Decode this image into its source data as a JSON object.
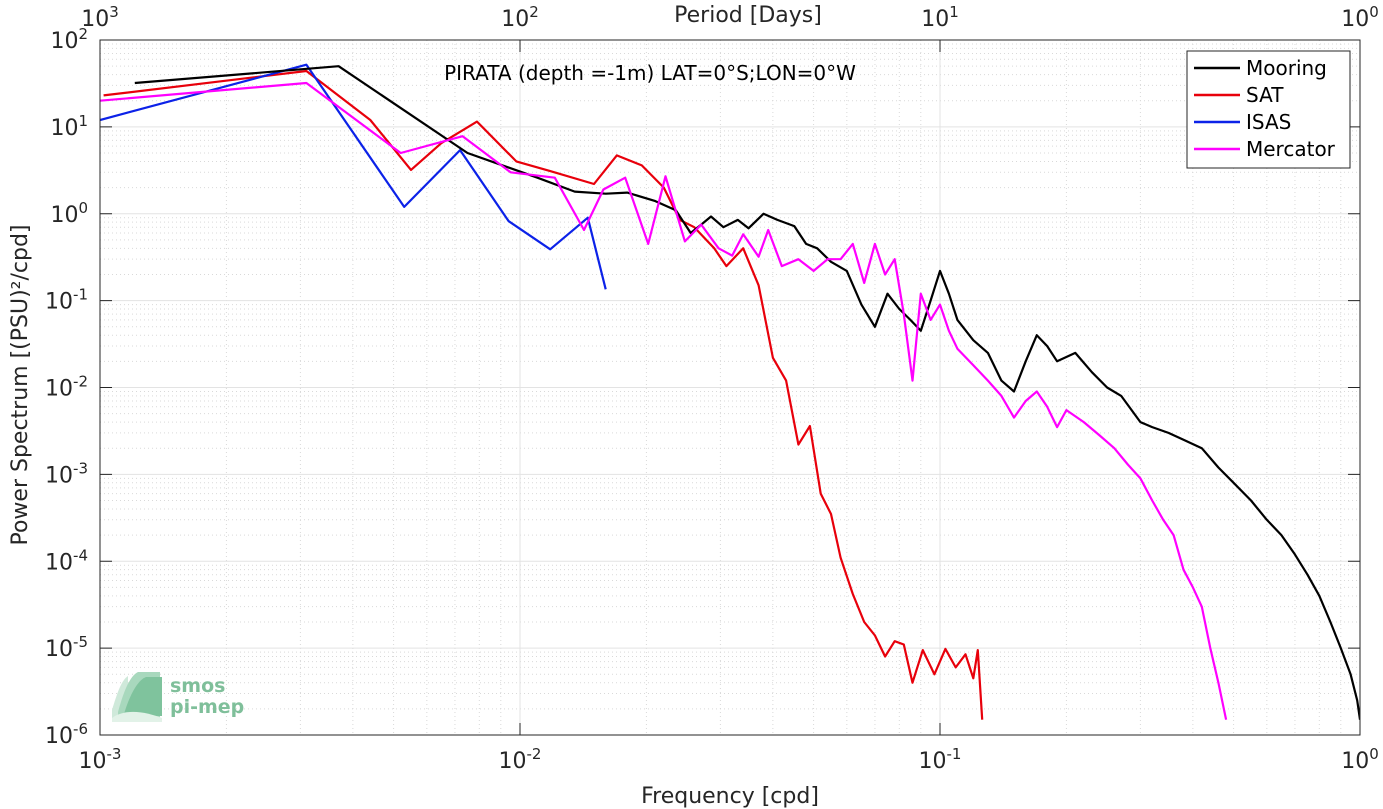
{
  "chart_data": {
    "type": "line",
    "title": "PIRATA (depth =-1m) LAT=0°S;LON=0°W",
    "xlabel": "Frequency [cpd]",
    "ylabel": "Power Spectrum [(PSU)²/cpd]",
    "top_xlabel": "Period [Days]",
    "xscale": "log",
    "yscale": "log",
    "xlim": [
      0.001,
      1
    ],
    "ylim": [
      1e-06,
      100
    ],
    "grid": true,
    "legend_position": "top-right",
    "x_ticks": [
      {
        "value": 0.001,
        "base": "10",
        "exp": "-3"
      },
      {
        "value": 0.01,
        "base": "10",
        "exp": "-2"
      },
      {
        "value": 0.1,
        "base": "10",
        "exp": "-1"
      },
      {
        "value": 1,
        "base": "10",
        "exp": "0"
      }
    ],
    "top_ticks": [
      {
        "value": 0.001,
        "base": "10",
        "exp": "3"
      },
      {
        "value": 0.01,
        "base": "10",
        "exp": "2"
      },
      {
        "value": 0.1,
        "base": "10",
        "exp": "1"
      },
      {
        "value": 1,
        "base": "10",
        "exp": "0"
      }
    ],
    "y_ticks": [
      {
        "value": 100,
        "base": "10",
        "exp": "2"
      },
      {
        "value": 10,
        "base": "10",
        "exp": "1"
      },
      {
        "value": 1,
        "base": "10",
        "exp": "0"
      },
      {
        "value": 0.1,
        "base": "10",
        "exp": "-1"
      },
      {
        "value": 0.01,
        "base": "10",
        "exp": "-2"
      },
      {
        "value": 0.001,
        "base": "10",
        "exp": "-3"
      },
      {
        "value": 0.0001,
        "base": "10",
        "exp": "-4"
      },
      {
        "value": 1e-05,
        "base": "10",
        "exp": "-5"
      },
      {
        "value": 1e-06,
        "base": "10",
        "exp": "-6"
      }
    ],
    "series": [
      {
        "name": "Mooring",
        "color": "#000000",
        "points": [
          [
            0.00121,
            32
          ],
          [
            0.0037,
            50
          ],
          [
            0.0075,
            5
          ],
          [
            0.011,
            2.6
          ],
          [
            0.0135,
            1.8
          ],
          [
            0.016,
            1.7
          ],
          [
            0.018,
            1.75
          ],
          [
            0.021,
            1.4
          ],
          [
            0.0235,
            1.1
          ],
          [
            0.0255,
            0.6
          ],
          [
            0.027,
            0.75
          ],
          [
            0.0285,
            0.93
          ],
          [
            0.0305,
            0.7
          ],
          [
            0.033,
            0.85
          ],
          [
            0.035,
            0.68
          ],
          [
            0.038,
            1.0
          ],
          [
            0.041,
            0.85
          ],
          [
            0.045,
            0.72
          ],
          [
            0.048,
            0.45
          ],
          [
            0.051,
            0.4
          ],
          [
            0.055,
            0.28
          ],
          [
            0.06,
            0.22
          ],
          [
            0.065,
            0.09
          ],
          [
            0.07,
            0.05
          ],
          [
            0.075,
            0.12
          ],
          [
            0.08,
            0.08
          ],
          [
            0.085,
            0.06
          ],
          [
            0.09,
            0.045
          ],
          [
            0.095,
            0.1
          ],
          [
            0.1,
            0.22
          ],
          [
            0.105,
            0.12
          ],
          [
            0.11,
            0.06
          ],
          [
            0.12,
            0.035
          ],
          [
            0.13,
            0.025
          ],
          [
            0.14,
            0.012
          ],
          [
            0.15,
            0.009
          ],
          [
            0.16,
            0.02
          ],
          [
            0.17,
            0.04
          ],
          [
            0.18,
            0.03
          ],
          [
            0.19,
            0.02
          ],
          [
            0.21,
            0.025
          ],
          [
            0.23,
            0.015
          ],
          [
            0.25,
            0.01
          ],
          [
            0.27,
            0.008
          ],
          [
            0.3,
            0.004
          ],
          [
            0.32,
            0.0035
          ],
          [
            0.35,
            0.003
          ],
          [
            0.38,
            0.0025
          ],
          [
            0.42,
            0.002
          ],
          [
            0.46,
            0.0012
          ],
          [
            0.5,
            0.0008
          ],
          [
            0.55,
            0.0005
          ],
          [
            0.6,
            0.0003
          ],
          [
            0.65,
            0.0002
          ],
          [
            0.7,
            0.00012
          ],
          [
            0.75,
            7e-05
          ],
          [
            0.8,
            4e-05
          ],
          [
            0.85,
            2e-05
          ],
          [
            0.9,
            1e-05
          ],
          [
            0.95,
            5e-06
          ],
          [
            0.985,
            2.5e-06
          ],
          [
            1.0,
            1.5e-06
          ]
        ]
      },
      {
        "name": "SAT",
        "color": "#e8000b",
        "points": [
          [
            0.00102,
            23
          ],
          [
            0.0031,
            44
          ],
          [
            0.0044,
            12
          ],
          [
            0.0055,
            3.2
          ],
          [
            0.0065,
            6.5
          ],
          [
            0.0079,
            11.5
          ],
          [
            0.0098,
            4.0
          ],
          [
            0.0118,
            3.1
          ],
          [
            0.015,
            2.2
          ],
          [
            0.017,
            4.7
          ],
          [
            0.0195,
            3.6
          ],
          [
            0.022,
            2.0
          ],
          [
            0.024,
            0.85
          ],
          [
            0.026,
            0.7
          ],
          [
            0.029,
            0.4
          ],
          [
            0.031,
            0.25
          ],
          [
            0.034,
            0.4
          ],
          [
            0.037,
            0.15
          ],
          [
            0.04,
            0.022
          ],
          [
            0.043,
            0.012
          ],
          [
            0.046,
            0.0022
          ],
          [
            0.049,
            0.0036
          ],
          [
            0.052,
            0.0006
          ],
          [
            0.055,
            0.00035
          ],
          [
            0.058,
            0.00011
          ],
          [
            0.062,
            4.2e-05
          ],
          [
            0.066,
            2e-05
          ],
          [
            0.07,
            1.4e-05
          ],
          [
            0.074,
            8e-06
          ],
          [
            0.078,
            1.2e-05
          ],
          [
            0.082,
            1.1e-05
          ],
          [
            0.086,
            4e-06
          ],
          [
            0.091,
            9.5e-06
          ],
          [
            0.097,
            5e-06
          ],
          [
            0.103,
            9.8e-06
          ],
          [
            0.109,
            6e-06
          ],
          [
            0.115,
            8.5e-06
          ],
          [
            0.12,
            4.5e-06
          ],
          [
            0.123,
            9.5e-06
          ],
          [
            0.126,
            1.5e-06
          ]
        ]
      },
      {
        "name": "ISAS",
        "color": "#0c22e8",
        "points": [
          [
            0.001,
            12
          ],
          [
            0.0031,
            52
          ],
          [
            0.0053,
            1.2
          ],
          [
            0.0072,
            5.4
          ],
          [
            0.0094,
            0.82
          ],
          [
            0.0118,
            0.39
          ],
          [
            0.0145,
            0.9
          ],
          [
            0.016,
            0.135
          ]
        ]
      },
      {
        "name": "Mercator",
        "color": "#ff00ff",
        "points": [
          [
            0.001,
            20
          ],
          [
            0.0031,
            32
          ],
          [
            0.0052,
            5.0
          ],
          [
            0.0073,
            7.8
          ],
          [
            0.0095,
            3.0
          ],
          [
            0.0121,
            2.6
          ],
          [
            0.0142,
            0.65
          ],
          [
            0.0158,
            1.9
          ],
          [
            0.0178,
            2.6
          ],
          [
            0.0202,
            0.45
          ],
          [
            0.0222,
            2.7
          ],
          [
            0.0247,
            0.48
          ],
          [
            0.027,
            0.75
          ],
          [
            0.0297,
            0.4
          ],
          [
            0.032,
            0.33
          ],
          [
            0.034,
            0.58
          ],
          [
            0.037,
            0.32
          ],
          [
            0.039,
            0.65
          ],
          [
            0.042,
            0.25
          ],
          [
            0.046,
            0.3
          ],
          [
            0.05,
            0.22
          ],
          [
            0.054,
            0.3
          ],
          [
            0.058,
            0.3
          ],
          [
            0.062,
            0.45
          ],
          [
            0.066,
            0.16
          ],
          [
            0.07,
            0.45
          ],
          [
            0.074,
            0.2
          ],
          [
            0.078,
            0.3
          ],
          [
            0.082,
            0.07
          ],
          [
            0.086,
            0.012
          ],
          [
            0.09,
            0.12
          ],
          [
            0.095,
            0.06
          ],
          [
            0.1,
            0.09
          ],
          [
            0.105,
            0.045
          ],
          [
            0.11,
            0.028
          ],
          [
            0.12,
            0.018
          ],
          [
            0.13,
            0.012
          ],
          [
            0.14,
            0.008
          ],
          [
            0.15,
            0.0045
          ],
          [
            0.16,
            0.007
          ],
          [
            0.17,
            0.009
          ],
          [
            0.18,
            0.006
          ],
          [
            0.19,
            0.0035
          ],
          [
            0.2,
            0.0055
          ],
          [
            0.22,
            0.004
          ],
          [
            0.24,
            0.0028
          ],
          [
            0.26,
            0.002
          ],
          [
            0.28,
            0.0013
          ],
          [
            0.3,
            0.0009
          ],
          [
            0.32,
            0.0005
          ],
          [
            0.34,
            0.0003
          ],
          [
            0.36,
            0.0002
          ],
          [
            0.38,
            8e-05
          ],
          [
            0.4,
            5e-05
          ],
          [
            0.42,
            3e-05
          ],
          [
            0.44,
            1e-05
          ],
          [
            0.46,
            4e-06
          ],
          [
            0.48,
            1.5e-06
          ]
        ]
      }
    ]
  },
  "logo": {
    "line1": "smos",
    "line2": "pi-mep"
  }
}
